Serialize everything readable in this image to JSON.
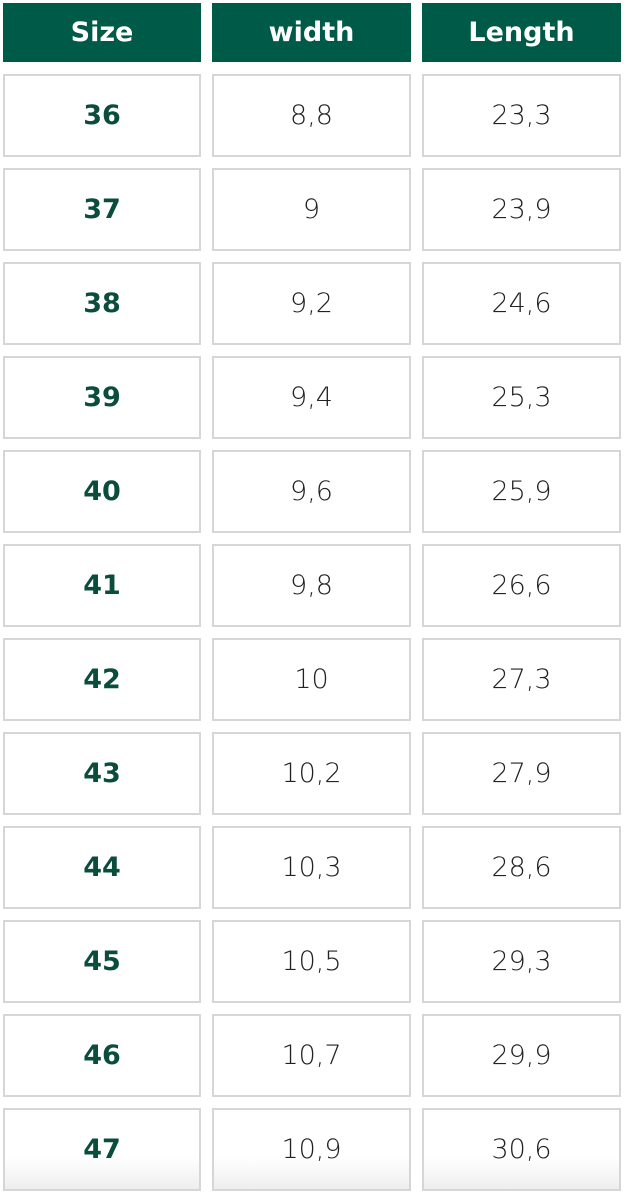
{
  "table": {
    "header": [
      "Size",
      "width",
      "Length"
    ],
    "rows": [
      [
        "36",
        "8,8",
        "23,3"
      ],
      [
        "37",
        "9",
        "23,9"
      ],
      [
        "38",
        "9,2",
        "24,6"
      ],
      [
        "39",
        "9,4",
        "25,3"
      ],
      [
        "40",
        "9,6",
        "25,9"
      ],
      [
        "41",
        "9,8",
        "26,6"
      ],
      [
        "42",
        "10",
        "27,3"
      ],
      [
        "43",
        "10,2",
        "27,9"
      ],
      [
        "44",
        "10,3",
        "28,6"
      ],
      [
        "45",
        "10,5",
        "29,3"
      ],
      [
        "46",
        "10,7",
        "29,9"
      ],
      [
        "47",
        "10,9",
        "30,6"
      ]
    ]
  }
}
